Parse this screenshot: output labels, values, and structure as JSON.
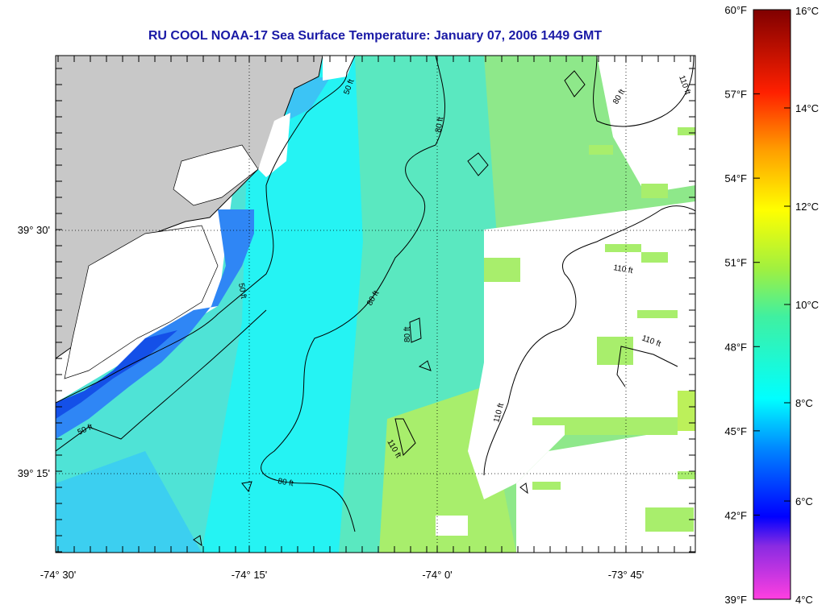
{
  "title": "RU COOL  NOAA-17  Sea Surface Temperature:  January 07, 2006 1449 GMT",
  "map": {
    "lon_labels": [
      "-74° 30'",
      "-74° 15'",
      "-74° 0'",
      "-73° 45'"
    ],
    "lat_labels": [
      "39° 30'",
      "39° 15'"
    ],
    "contour_labels": [
      "50 ft",
      "50 ft",
      "50 ft",
      "80 ft",
      "80 ft",
      "80 ft",
      "80 ft",
      "80 ft",
      "110 ft",
      "110 ft",
      "110 ft",
      "110 ft",
      "110 ft"
    ],
    "land_color": "#c8c8c8",
    "cloud_color": "#ffffff"
  },
  "colorbar": {
    "fahrenheit_labels": [
      "60°F",
      "57°F",
      "54°F",
      "51°F",
      "48°F",
      "45°F",
      "42°F",
      "39°F"
    ],
    "celsius_labels": [
      "16°C",
      "14°C",
      "12°C",
      "10°C",
      "8°C",
      "6°C",
      "4°C"
    ],
    "range_c": [
      4,
      16
    ]
  }
}
